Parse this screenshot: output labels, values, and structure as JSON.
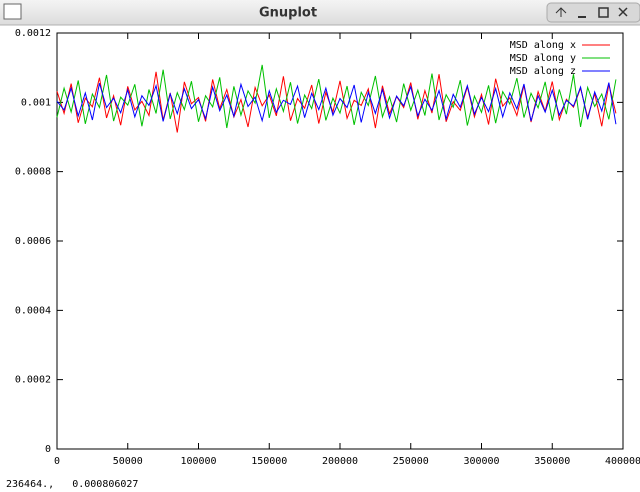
{
  "window": {
    "title": "Gnuplot",
    "status": "236464.,   0.000806027"
  },
  "chart_data": {
    "type": "line",
    "x": [
      0,
      5000,
      10000,
      15000,
      20000,
      25000,
      30000,
      35000,
      40000,
      45000,
      50000,
      55000,
      60000,
      65000,
      70000,
      75000,
      80000,
      85000,
      90000,
      95000,
      100000,
      105000,
      110000,
      115000,
      120000,
      125000,
      130000,
      135000,
      140000,
      145000,
      150000,
      155000,
      160000,
      165000,
      170000,
      175000,
      180000,
      185000,
      190000,
      195000,
      200000,
      205000,
      210000,
      215000,
      220000,
      225000,
      230000,
      235000,
      240000,
      245000,
      250000,
      255000,
      260000,
      265000,
      270000,
      275000,
      280000,
      285000,
      290000,
      295000,
      300000,
      305000,
      310000,
      315000,
      320000,
      325000,
      330000,
      335000,
      340000,
      345000,
      350000,
      355000,
      360000,
      365000,
      370000,
      375000,
      380000,
      385000,
      390000,
      395000
    ],
    "series": [
      {
        "name": "MSD along x",
        "color": "#ff0000",
        "values": [
          0.001032,
          0.000968,
          0.001054,
          0.000941,
          0.001012,
          0.000987,
          0.001071,
          0.000955,
          0.001019,
          0.000934,
          0.001046,
          0.000978,
          0.001003,
          0.000962,
          0.001088,
          0.000949,
          0.001027,
          0.000913,
          0.001059,
          0.000996,
          0.001014,
          0.000945,
          0.001066,
          0.000982,
          0.001037,
          0.000958,
          0.001008,
          0.000929,
          0.001043,
          0.00099,
          0.001021,
          0.000961,
          0.001075,
          0.000947,
          0.001011,
          0.000983,
          0.00105,
          0.000939,
          0.001029,
          0.000972,
          0.001062,
          0.000954,
          0.001006,
          0.000991,
          0.001039,
          0.000926,
          0.001048,
          0.000967,
          0.001017,
          0.000985,
          0.001057,
          0.000951,
          0.001034,
          0.000969,
          0.001081,
          0.000944,
          0.001002,
          0.000977,
          0.001045,
          0.000958,
          0.001023,
          0.000936,
          0.001068,
          0.000989,
          0.001013,
          0.000962,
          0.001049,
          0.000943,
          0.001031,
          0.000974,
          0.00106,
          0.00095,
          0.001009,
          0.000986,
          0.001041,
          0.000957,
          0.001025,
          0.000931,
          0.001052,
          0.000968
        ]
      },
      {
        "name": "MSD along y",
        "color": "#00c000",
        "values": [
          0.000957,
          0.001041,
          0.000972,
          0.001063,
          0.000938,
          0.001024,
          0.000985,
          0.001079,
          0.000946,
          0.001015,
          0.000992,
          0.001052,
          0.000931,
          0.001037,
          0.000968,
          0.001094,
          0.000952,
          0.001028,
          0.000979,
          0.001061,
          0.000944,
          0.001019,
          0.000987,
          0.001072,
          0.000926,
          0.001046,
          0.000963,
          0.001033,
          0.000998,
          0.001108,
          0.000955,
          0.001039,
          0.000974,
          0.001058,
          0.000939,
          0.001021,
          0.000982,
          0.001067,
          0.000948,
          0.001012,
          0.000969,
          0.001047,
          0.000935,
          0.001029,
          0.000991,
          0.001076,
          0.000958,
          0.001016,
          0.000943,
          0.001054,
          0.000977,
          0.001035,
          0.000962,
          0.001083,
          0.000949,
          0.001022,
          0.000986,
          0.001064,
          0.000933,
          0.001018,
          0.000971,
          0.001049,
          0.00094,
          0.001031,
          0.000995,
          0.00107,
          0.000956,
          0.001026,
          0.000984,
          0.001059,
          0.000947,
          0.001037,
          0.000966,
          0.001081,
          0.000929,
          0.001043,
          0.000988,
          0.001024,
          0.000951,
          0.001066
        ]
      },
      {
        "name": "MSD along z",
        "color": "#0000ff",
        "values": [
          0.001003,
          0.000978,
          0.001041,
          0.000961,
          0.001027,
          0.000949,
          0.001055,
          0.000985,
          0.001012,
          0.00097,
          0.001036,
          0.000958,
          0.001019,
          0.000991,
          0.001048,
          0.000945,
          0.001024,
          0.000967,
          0.001039,
          0.000982,
          0.001008,
          0.000953,
          0.001044,
          0.000976,
          0.001021,
          0.00096,
          0.001052,
          0.000988,
          0.001015,
          0.000947,
          0.001033,
          0.000971,
          0.001006,
          0.000994,
          0.001047,
          0.000956,
          0.001026,
          0.000979,
          0.001041,
          0.000963,
          0.001011,
          0.000985,
          0.00105,
          0.000942,
          0.001029,
          0.000968,
          0.001037,
          0.000955,
          0.001018,
          0.00099,
          0.001045,
          0.000961,
          0.001009,
          0.000977,
          0.001034,
          0.000952,
          0.001023,
          0.000986,
          0.001048,
          0.000966,
          0.001014,
          0.000973,
          0.00104,
          0.000958,
          0.001027,
          0.000981,
          0.001053,
          0.000946,
          0.001019,
          0.000972,
          0.001035,
          0.000963,
          0.001006,
          0.000989,
          0.001044,
          0.000951,
          0.00103,
          0.000975,
          0.001057,
          0.000937
        ]
      }
    ],
    "xlim": [
      0,
      400000
    ],
    "xticks": [
      0,
      50000,
      100000,
      150000,
      200000,
      250000,
      300000,
      350000,
      400000
    ],
    "ylim": [
      0,
      0.0012
    ],
    "yticks": [
      0,
      0.0002,
      0.0004,
      0.0006,
      0.0008,
      0.001,
      0.0012
    ],
    "legend": "top-right"
  }
}
